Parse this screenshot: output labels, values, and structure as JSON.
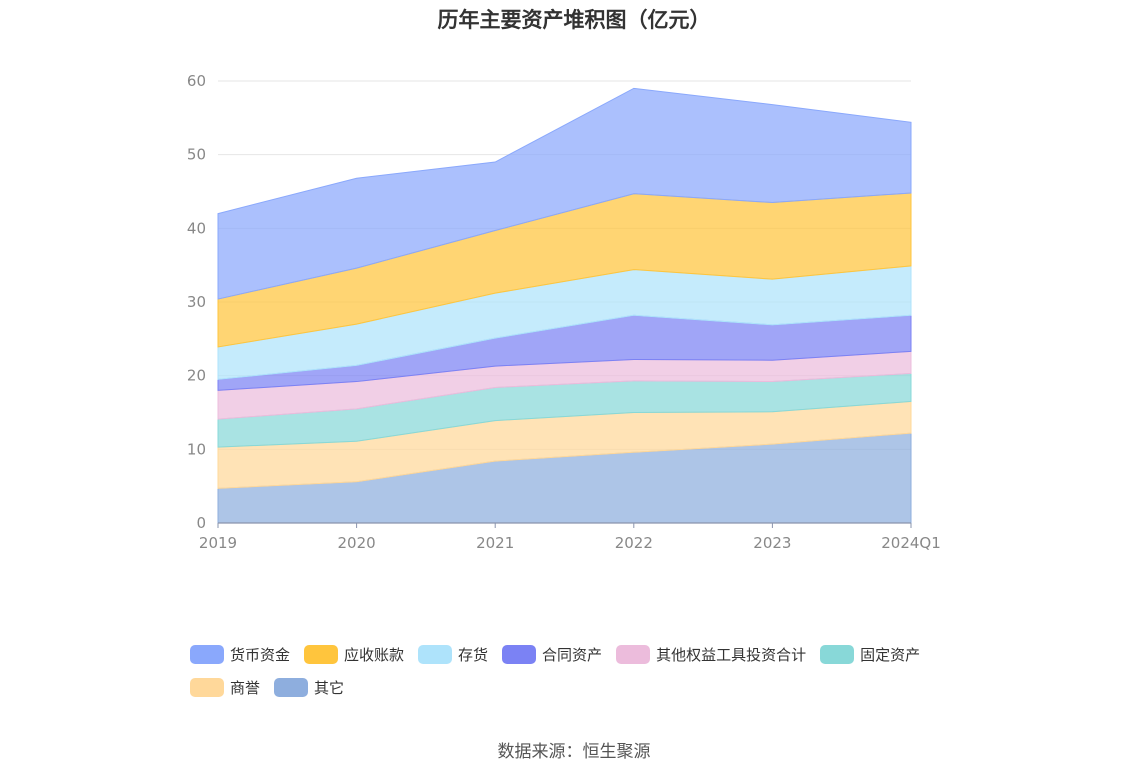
{
  "chart_data": {
    "type": "area",
    "stacked": true,
    "title": "历年主要资产堆积图（亿元）",
    "categories": [
      "2019",
      "2020",
      "2021",
      "2022",
      "2023",
      "2024Q1"
    ],
    "yticks": [
      "0",
      "10",
      "20",
      "30",
      "40",
      "50",
      "60"
    ],
    "ylim": [
      0,
      60
    ],
    "grid": true,
    "legend_position": "bottom",
    "series": [
      {
        "name": "其它",
        "color": "#8eaede",
        "values": [
          4.7,
          5.6,
          8.4,
          9.6,
          10.7,
          12.2
        ]
      },
      {
        "name": "商誉",
        "color": "#ffd89a",
        "values": [
          5.6,
          5.5,
          5.5,
          5.4,
          4.4,
          4.3
        ]
      },
      {
        "name": "固定资产",
        "color": "#88d8d8",
        "values": [
          3.8,
          4.4,
          4.5,
          4.3,
          4.1,
          3.8
        ]
      },
      {
        "name": "其他权益工具投资合计",
        "color": "#ecbcdc",
        "values": [
          3.9,
          3.7,
          2.9,
          2.9,
          2.9,
          3.0
        ]
      },
      {
        "name": "合同资产",
        "color": "#7b82f4",
        "values": [
          1.5,
          2.2,
          3.8,
          6.0,
          4.8,
          4.9
        ]
      },
      {
        "name": "存货",
        "color": "#aee3fb",
        "values": [
          4.4,
          5.6,
          6.1,
          6.2,
          6.2,
          6.7
        ]
      },
      {
        "name": "应收账款",
        "color": "#ffc53d",
        "values": [
          6.5,
          7.6,
          8.5,
          10.3,
          10.4,
          9.9
        ]
      },
      {
        "name": "货币资金",
        "color": "#8aa8fc",
        "values": [
          11.6,
          12.2,
          9.3,
          14.3,
          13.3,
          9.6
        ]
      }
    ]
  },
  "legend": [
    [
      "货币资金",
      "应收账款",
      "存货",
      "合同资产",
      "其他权益工具投资合计",
      "固定资产"
    ],
    [
      "商誉",
      "其它"
    ]
  ],
  "source": "数据来源：恒生聚源"
}
